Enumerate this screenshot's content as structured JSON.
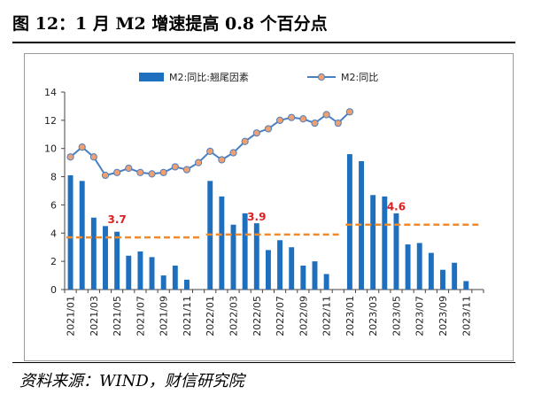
{
  "figure": {
    "title": "图 12：1 月 M2 增速提高 0.8 个百分点",
    "source": "资料来源：WIND，财信研究院"
  },
  "colors": {
    "bar": "#1f6fbf",
    "line": "#4a7fc0",
    "marker_fill": "#f0a070",
    "avg_dash": "#f08a2c",
    "avg_label": "#e02020"
  },
  "chart_data": {
    "type": "bar",
    "categories": [
      "2021/01",
      "2021/02",
      "2021/03",
      "2021/04",
      "2021/05",
      "2021/06",
      "2021/07",
      "2021/08",
      "2021/09",
      "2021/10",
      "2021/11",
      "2021/12",
      "2022/01",
      "2022/02",
      "2022/03",
      "2022/04",
      "2022/05",
      "2022/06",
      "2022/07",
      "2022/08",
      "2022/09",
      "2022/10",
      "2022/11",
      "2022/12",
      "2023/01",
      "2023/02",
      "2023/03",
      "2023/04",
      "2023/05",
      "2023/06",
      "2023/07",
      "2023/08",
      "2023/09",
      "2023/10",
      "2023/11",
      "2023/12"
    ],
    "tick_labels": [
      "2021/01",
      "2021/03",
      "2021/05",
      "2021/07",
      "2021/09",
      "2021/11",
      "2022/01",
      "2022/03",
      "2022/05",
      "2022/07",
      "2022/09",
      "2022/11",
      "2023/01",
      "2023/03",
      "2023/05",
      "2023/07",
      "2023/09",
      "2023/11"
    ],
    "series": [
      {
        "name": "M2:同比:翘尾因素",
        "type": "bar",
        "values": [
          8.1,
          7.7,
          5.1,
          4.5,
          4.1,
          2.4,
          2.7,
          2.3,
          1.0,
          1.7,
          0.7,
          null,
          7.7,
          6.6,
          4.6,
          5.4,
          4.7,
          2.8,
          3.5,
          3.0,
          1.7,
          2.0,
          1.1,
          null,
          9.6,
          9.1,
          6.7,
          6.6,
          5.4,
          3.2,
          3.3,
          2.6,
          1.4,
          1.9,
          0.6,
          null
        ]
      },
      {
        "name": "M2:同比",
        "type": "line",
        "values": [
          9.4,
          10.1,
          9.4,
          8.1,
          8.3,
          8.6,
          8.3,
          8.2,
          8.3,
          8.7,
          8.5,
          9.0,
          9.8,
          9.2,
          9.7,
          10.5,
          11.1,
          11.4,
          12.0,
          12.2,
          12.1,
          11.8,
          12.4,
          11.8,
          12.6,
          null,
          null,
          null,
          null,
          null,
          null,
          null,
          null,
          null,
          null,
          null
        ]
      }
    ],
    "averages": [
      {
        "year": "2021",
        "value": 3.7,
        "label": "3.7",
        "from": 0,
        "to": 11
      },
      {
        "year": "2022",
        "value": 3.9,
        "label": "3.9",
        "from": 12,
        "to": 23
      },
      {
        "year": "2023",
        "value": 4.6,
        "label": "4.6",
        "from": 24,
        "to": 35
      }
    ],
    "ylim": [
      0,
      14
    ],
    "yticks": [
      0,
      2,
      4,
      6,
      8,
      10,
      12,
      14
    ],
    "grid": false,
    "legend": "top"
  }
}
